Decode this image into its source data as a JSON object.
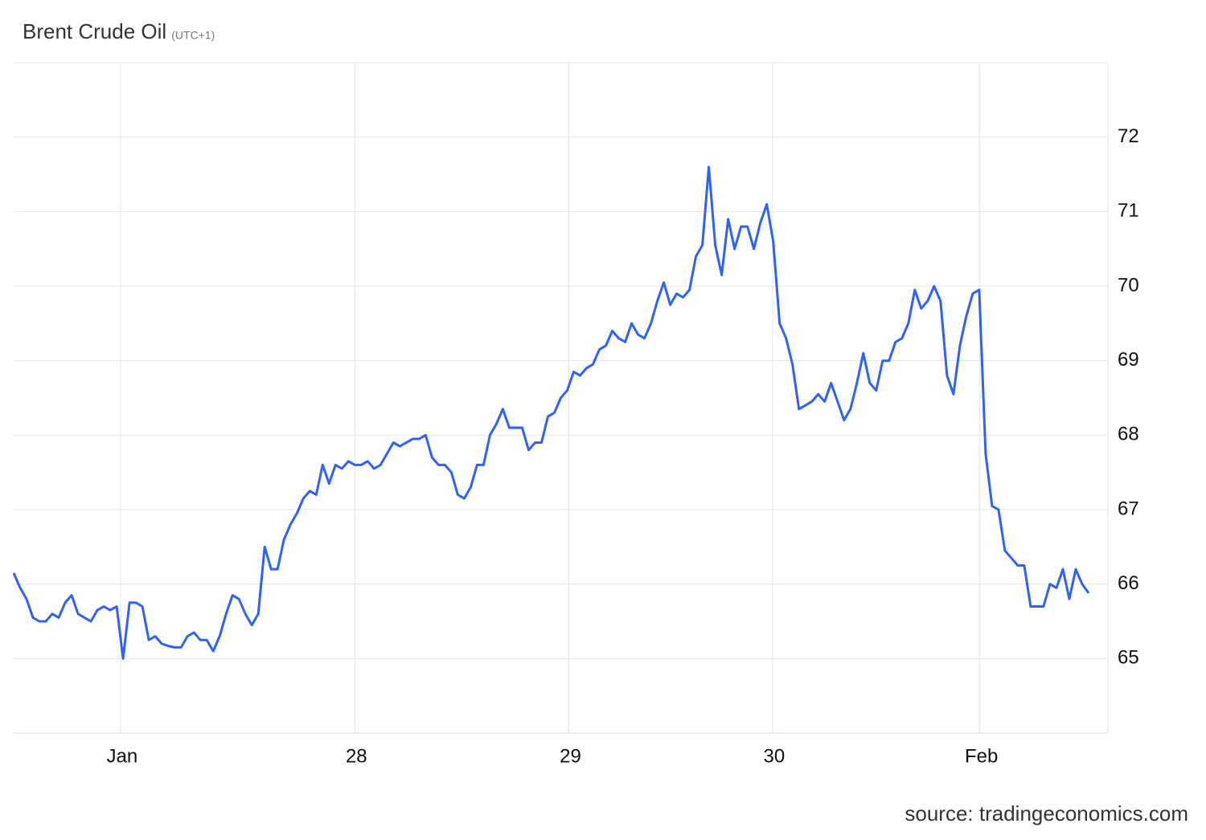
{
  "chart_data": {
    "type": "line",
    "title": "Brent Crude Oil",
    "subtitle": "(UTC+1)",
    "source": "source: tradingeconomics.com",
    "series": [
      {
        "name": "Brent Crude Oil",
        "color": "#2f62f2",
        "values": [
          66.15,
          65.95,
          65.8,
          65.55,
          65.5,
          65.5,
          65.6,
          65.55,
          65.75,
          65.85,
          65.6,
          65.55,
          65.5,
          65.65,
          65.7,
          65.65,
          65.7,
          65.0,
          65.75,
          65.75,
          65.7,
          65.25,
          65.3,
          65.2,
          65.17,
          65.15,
          65.15,
          65.3,
          65.35,
          65.25,
          65.25,
          65.1,
          65.3,
          65.6,
          65.85,
          65.8,
          65.6,
          65.45,
          65.6,
          66.5,
          66.2,
          66.2,
          66.6,
          66.8,
          66.95,
          67.15,
          67.25,
          67.2,
          67.6,
          67.35,
          67.6,
          67.55,
          67.65,
          67.6,
          67.6,
          67.65,
          67.55,
          67.6,
          67.75,
          67.9,
          67.85,
          67.9,
          67.95,
          67.95,
          68.0,
          67.7,
          67.6,
          67.6,
          67.5,
          67.2,
          67.15,
          67.3,
          67.6,
          67.6,
          68.0,
          68.15,
          68.35,
          68.1,
          68.1,
          68.1,
          67.8,
          67.9,
          67.9,
          68.25,
          68.3,
          68.5,
          68.6,
          68.85,
          68.8,
          68.9,
          68.95,
          69.15,
          69.2,
          69.4,
          69.3,
          69.25,
          69.5,
          69.35,
          69.3,
          69.5,
          69.8,
          70.05,
          69.75,
          69.9,
          69.85,
          69.95,
          70.4,
          70.55,
          71.6,
          70.55,
          70.15,
          70.9,
          70.5,
          70.8,
          70.8,
          70.5,
          70.85,
          71.1,
          70.6,
          69.5,
          69.3,
          68.95,
          68.35,
          68.4,
          68.45,
          68.55,
          68.45,
          68.7,
          68.45,
          68.2,
          68.35,
          68.7,
          69.1,
          68.7,
          68.6,
          69.0,
          69.0,
          69.25,
          69.3,
          69.5,
          69.95,
          69.7,
          69.8,
          70.0,
          69.8,
          68.8,
          68.55,
          69.2,
          69.6,
          69.9,
          69.95,
          67.75,
          67.05,
          67.0,
          66.45,
          66.35,
          66.25,
          66.25,
          65.7,
          65.7,
          65.7,
          66.0,
          65.95,
          66.2,
          65.8,
          66.2,
          66.0,
          65.88
        ]
      }
    ],
    "xlim": [
      0,
      170
    ],
    "xticks": [
      {
        "value": 16.6,
        "label": "Jan"
      },
      {
        "value": 53,
        "label": "28"
      },
      {
        "value": 86.25,
        "label": "29"
      },
      {
        "value": 117.9,
        "label": "30"
      },
      {
        "value": 150.1,
        "label": "Feb"
      }
    ],
    "ylim": [
      64,
      73
    ],
    "yticks": [
      65,
      66,
      67,
      68,
      69,
      70,
      71,
      72
    ],
    "grid": true
  }
}
